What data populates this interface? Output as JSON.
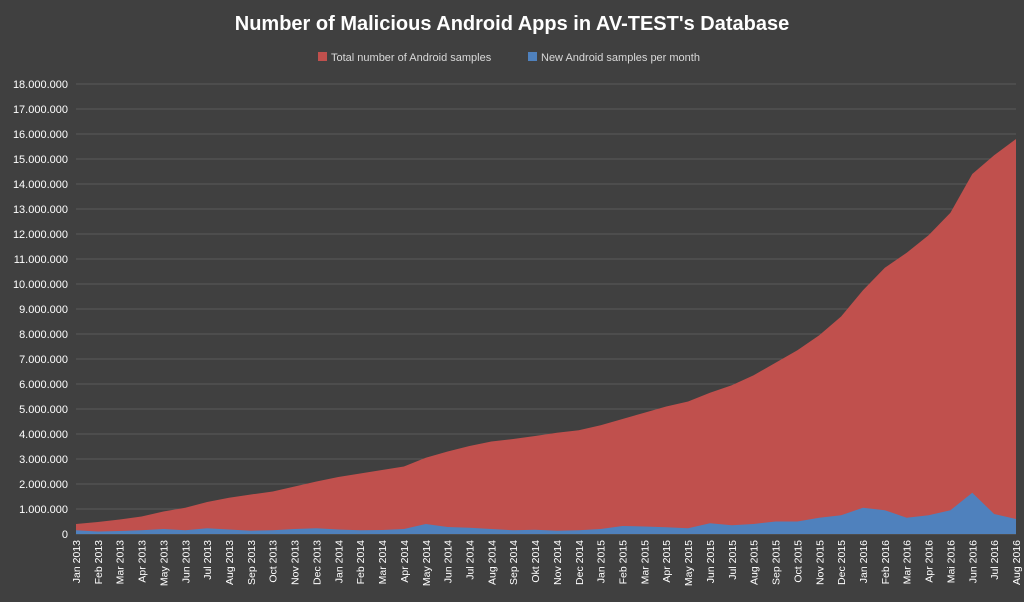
{
  "chart_data": {
    "type": "area",
    "title": "Number of Malicious Android Apps in AV-TEST's Database",
    "xlabel": "",
    "ylabel": "",
    "ylim": [
      0,
      18000000
    ],
    "yticks": [
      0,
      1000000,
      2000000,
      3000000,
      4000000,
      5000000,
      6000000,
      7000000,
      8000000,
      9000000,
      10000000,
      11000000,
      12000000,
      13000000,
      14000000,
      15000000,
      16000000,
      17000000,
      18000000
    ],
    "ytick_labels": [
      "0",
      "1.000.000",
      "2.000.000",
      "3.000.000",
      "4.000.000",
      "5.000.000",
      "6.000.000",
      "7.000.000",
      "8.000.000",
      "9.000.000",
      "10.000.000",
      "11.000.000",
      "12.000.000",
      "13.000.000",
      "14.000.000",
      "15.000.000",
      "16.000.000",
      "17.000.000",
      "18.000.000"
    ],
    "grid": true,
    "legend_position": "top-center",
    "categories": [
      "Jan 2013",
      "Feb 2013",
      "Mar 2013",
      "Apr 2013",
      "May 2013",
      "Jun 2013",
      "Jul 2013",
      "Aug 2013",
      "Sep 2013",
      "Oct 2013",
      "Nov 2013",
      "Dec 2013",
      "Jan 2014",
      "Feb 2014",
      "Mar 2014",
      "Apr 2014",
      "May 2014",
      "Jun 2014",
      "Jul 2014",
      "Aug 2014",
      "Sep 2014",
      "Okt 2014",
      "Nov 2014",
      "Dec 2014",
      "Jan 2015",
      "Feb 2015",
      "Mar 2015",
      "Apr 2015",
      "May 2015",
      "Jun 2015",
      "Jul 2015",
      "Aug 2015",
      "Sep 2015",
      "Oct 2015",
      "Nov 2015",
      "Dec 2015",
      "Jan 2016",
      "Feb 2016",
      "Mar 2016",
      "Apr 2016",
      "Mai 2016",
      "Jun 2016",
      "Jul 2016",
      "Aug 2016"
    ],
    "series": [
      {
        "name": "Total number of Android samples",
        "color": "#c0504d",
        "values": [
          400000,
          480000,
          580000,
          700000,
          900000,
          1050000,
          1280000,
          1450000,
          1580000,
          1700000,
          1900000,
          2100000,
          2280000,
          2420000,
          2560000,
          2700000,
          3050000,
          3300000,
          3520000,
          3700000,
          3800000,
          3920000,
          4050000,
          4150000,
          4350000,
          4600000,
          4850000,
          5100000,
          5300000,
          5650000,
          5950000,
          6350000,
          6850000,
          7350000,
          7950000,
          8700000,
          9750000,
          10650000,
          11250000,
          11950000,
          12850000,
          14400000,
          15150000,
          15800000
        ]
      },
      {
        "name": "New Android samples per month",
        "color": "#4f81bd",
        "values": [
          150000,
          100000,
          120000,
          150000,
          200000,
          150000,
          230000,
          180000,
          130000,
          150000,
          200000,
          230000,
          180000,
          150000,
          160000,
          200000,
          400000,
          280000,
          250000,
          200000,
          150000,
          170000,
          130000,
          150000,
          200000,
          320000,
          300000,
          270000,
          230000,
          430000,
          350000,
          400000,
          500000,
          500000,
          650000,
          750000,
          1050000,
          950000,
          650000,
          750000,
          950000,
          1650000,
          800000,
          600000
        ]
      }
    ]
  }
}
